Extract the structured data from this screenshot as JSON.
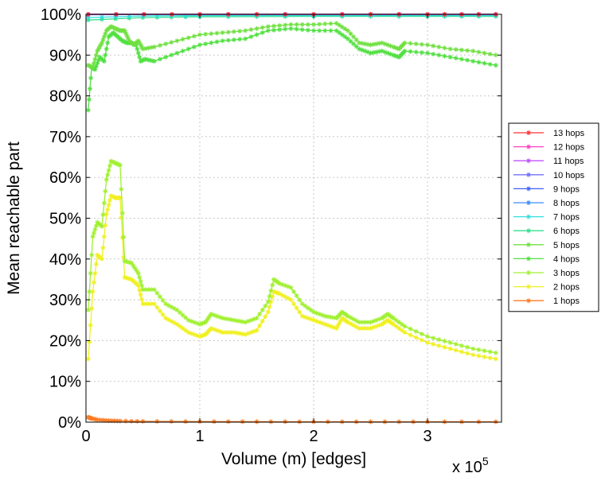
{
  "chart_data": {
    "type": "line",
    "title": "",
    "xlabel": "Volume (m) [edges]",
    "ylabel": "Mean reachable part",
    "x_multiplier_label": "x 10",
    "x_multiplier_exponent": "5",
    "xlim": [
      0,
      3.65
    ],
    "ylim": [
      0,
      100
    ],
    "x_ticks": [
      0,
      1,
      2,
      3
    ],
    "x_tick_labels": [
      "0",
      "1",
      "2",
      "3"
    ],
    "y_ticks": [
      0,
      10,
      20,
      30,
      40,
      50,
      60,
      70,
      80,
      90,
      100
    ],
    "y_tick_labels": [
      "0%",
      "10%",
      "20%",
      "30%",
      "40%",
      "50%",
      "60%",
      "70%",
      "80%",
      "90%",
      "100%"
    ],
    "grid": true,
    "legend_position": "right",
    "series": [
      {
        "name": "13 hops",
        "color": "#ff3030",
        "x": [
          0.02,
          1.0,
          2.0,
          3.0,
          3.6
        ],
        "y": [
          100,
          100,
          100,
          100,
          100
        ]
      },
      {
        "name": "12 hops",
        "color": "#ff40c0",
        "x": [
          0.02,
          1.0,
          2.0,
          3.0,
          3.6
        ],
        "y": [
          100,
          100,
          100,
          100,
          100
        ]
      },
      {
        "name": "11 hops",
        "color": "#c050ff",
        "x": [
          0.02,
          1.0,
          2.0,
          3.0,
          3.6
        ],
        "y": [
          100,
          100,
          100,
          100,
          100
        ]
      },
      {
        "name": "10 hops",
        "color": "#7070ff",
        "x": [
          0.02,
          1.0,
          2.0,
          3.0,
          3.6
        ],
        "y": [
          100,
          100,
          100,
          100,
          100
        ]
      },
      {
        "name": "9 hops",
        "color": "#4060ff",
        "x": [
          0.02,
          1.0,
          2.0,
          3.0,
          3.6
        ],
        "y": [
          100,
          100,
          100,
          100,
          100
        ]
      },
      {
        "name": "8 hops",
        "color": "#3a8cff",
        "x": [
          0.02,
          1.0,
          2.0,
          3.0,
          3.6
        ],
        "y": [
          99.9,
          100,
          100,
          100,
          100
        ]
      },
      {
        "name": "7 hops",
        "color": "#30e0e0",
        "x": [
          0.02,
          0.5,
          1.0,
          2.0,
          3.0,
          3.6
        ],
        "y": [
          99.2,
          99.6,
          99.7,
          99.7,
          99.7,
          99.7
        ]
      },
      {
        "name": "6 hops",
        "color": "#30e090",
        "x": [
          0.02,
          0.5,
          1.0,
          2.0,
          3.0,
          3.6
        ],
        "y": [
          98.6,
          99.2,
          99.4,
          99.5,
          99.5,
          99.5
        ]
      },
      {
        "name": "5 hops",
        "color": "#70e040",
        "x": [
          0.02,
          0.06,
          0.1,
          0.14,
          0.18,
          0.22,
          0.26,
          0.3,
          0.34,
          0.38,
          0.42,
          0.46,
          0.5,
          0.6,
          0.8,
          1.0,
          1.2,
          1.4,
          1.6,
          1.8,
          2.0,
          2.2,
          2.3,
          2.4,
          2.5,
          2.6,
          2.7,
          2.75,
          2.8,
          3.0,
          3.2,
          3.4,
          3.6
        ],
        "y": [
          87.5,
          87,
          91,
          93,
          96,
          97,
          96.5,
          96,
          96,
          93.5,
          92.5,
          93.5,
          91.5,
          92,
          93.5,
          95,
          95.5,
          96,
          97,
          97.5,
          97.5,
          97.8,
          96,
          93,
          92.5,
          93,
          92,
          91.5,
          93,
          92.5,
          91.5,
          91,
          90
        ]
      },
      {
        "name": "4 hops",
        "color": "#50e040",
        "x": [
          0.02,
          0.05,
          0.08,
          0.12,
          0.16,
          0.2,
          0.24,
          0.28,
          0.32,
          0.36,
          0.4,
          0.44,
          0.48,
          0.52,
          0.6,
          0.8,
          1.0,
          1.2,
          1.4,
          1.6,
          1.8,
          2.0,
          2.2,
          2.3,
          2.4,
          2.5,
          2.6,
          2.7,
          2.75,
          2.8,
          3.0,
          3.2,
          3.4,
          3.6
        ],
        "y": [
          76.5,
          87,
          86.5,
          89.5,
          88.5,
          94.5,
          95.5,
          94.5,
          93.5,
          93,
          93,
          92.5,
          88.5,
          89,
          88.5,
          90.5,
          92.5,
          93.5,
          94,
          96,
          96.5,
          96,
          96,
          94,
          91.5,
          90.5,
          91,
          90,
          89.5,
          91,
          90.5,
          89.5,
          88.5,
          87.5
        ]
      },
      {
        "name": "3 hops",
        "color": "#a0f030",
        "x": [
          0.02,
          0.06,
          0.1,
          0.14,
          0.18,
          0.22,
          0.26,
          0.3,
          0.34,
          0.4,
          0.46,
          0.5,
          0.6,
          0.7,
          0.8,
          0.9,
          1.0,
          1.05,
          1.1,
          1.2,
          1.3,
          1.4,
          1.5,
          1.6,
          1.65,
          1.7,
          1.8,
          1.9,
          2.0,
          2.1,
          2.2,
          2.25,
          2.3,
          2.4,
          2.5,
          2.6,
          2.65,
          2.7,
          2.8,
          3.0,
          3.2,
          3.4,
          3.6
        ],
        "y": [
          27.5,
          45.5,
          49,
          48,
          59.5,
          64,
          63.5,
          63,
          39.5,
          39,
          36.5,
          32.5,
          32.5,
          29,
          27.5,
          25,
          24,
          24.5,
          26.5,
          25.5,
          25,
          24.5,
          25.5,
          29.5,
          35,
          34,
          33,
          29,
          27,
          26,
          25.5,
          27,
          26,
          24.5,
          24.5,
          25.5,
          26.5,
          25.5,
          23.5,
          21,
          19.5,
          18,
          17
        ]
      },
      {
        "name": "2 hops",
        "color": "#f0f020",
        "x": [
          0.02,
          0.06,
          0.1,
          0.14,
          0.18,
          0.22,
          0.26,
          0.3,
          0.34,
          0.4,
          0.46,
          0.5,
          0.6,
          0.7,
          0.8,
          0.9,
          1.0,
          1.05,
          1.1,
          1.2,
          1.3,
          1.4,
          1.5,
          1.6,
          1.65,
          1.7,
          1.8,
          1.9,
          2.0,
          2.1,
          2.2,
          2.25,
          2.3,
          2.4,
          2.5,
          2.6,
          2.65,
          2.7,
          2.8,
          3.0,
          3.2,
          3.4,
          3.6
        ],
        "y": [
          15.5,
          32,
          41,
          40,
          51,
          55.5,
          55,
          55,
          35.5,
          35,
          33.5,
          29,
          29,
          25.5,
          24,
          22,
          21,
          21.5,
          23,
          22,
          22,
          21.5,
          22.5,
          27,
          32,
          31.5,
          30,
          26,
          25,
          24,
          23,
          25.5,
          24.5,
          23,
          23,
          24,
          25,
          24,
          22,
          19.5,
          18,
          16.5,
          15.5
        ]
      },
      {
        "name": "1 hops",
        "color": "#ff7a20",
        "x": [
          0.02,
          0.05,
          0.1,
          0.2,
          0.3,
          0.5,
          1.0,
          1.5,
          2.0,
          2.5,
          3.0,
          3.6
        ],
        "y": [
          1.2,
          0.9,
          0.6,
          0.4,
          0.3,
          0.2,
          0.15,
          0.12,
          0.1,
          0.1,
          0.1,
          0.1
        ]
      }
    ]
  }
}
